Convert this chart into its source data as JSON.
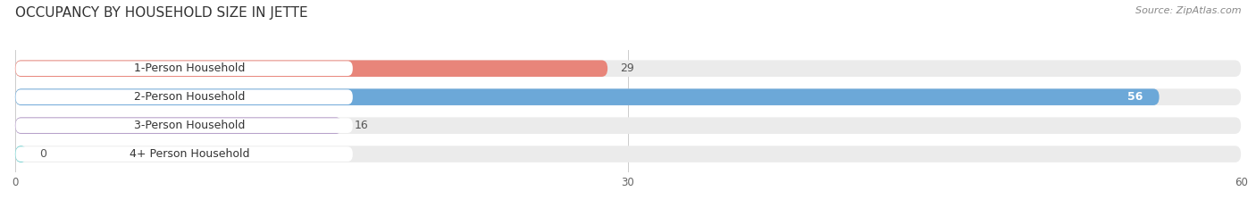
{
  "title": "OCCUPANCY BY HOUSEHOLD SIZE IN JETTE",
  "source": "Source: ZipAtlas.com",
  "categories": [
    "1-Person Household",
    "2-Person Household",
    "3-Person Household",
    "4+ Person Household"
  ],
  "values": [
    29,
    56,
    16,
    0
  ],
  "bar_colors": [
    "#E8857A",
    "#6CA8D8",
    "#B39BC8",
    "#6ECFCE"
  ],
  "xlim": [
    0,
    60
  ],
  "xticks": [
    0,
    30,
    60
  ],
  "background_color": "#ffffff",
  "bar_bg_color": "#ebebeb",
  "label_bg_color": "#ffffff",
  "title_fontsize": 11,
  "label_fontsize": 9,
  "value_fontsize": 9,
  "source_fontsize": 8,
  "bar_height": 0.58
}
